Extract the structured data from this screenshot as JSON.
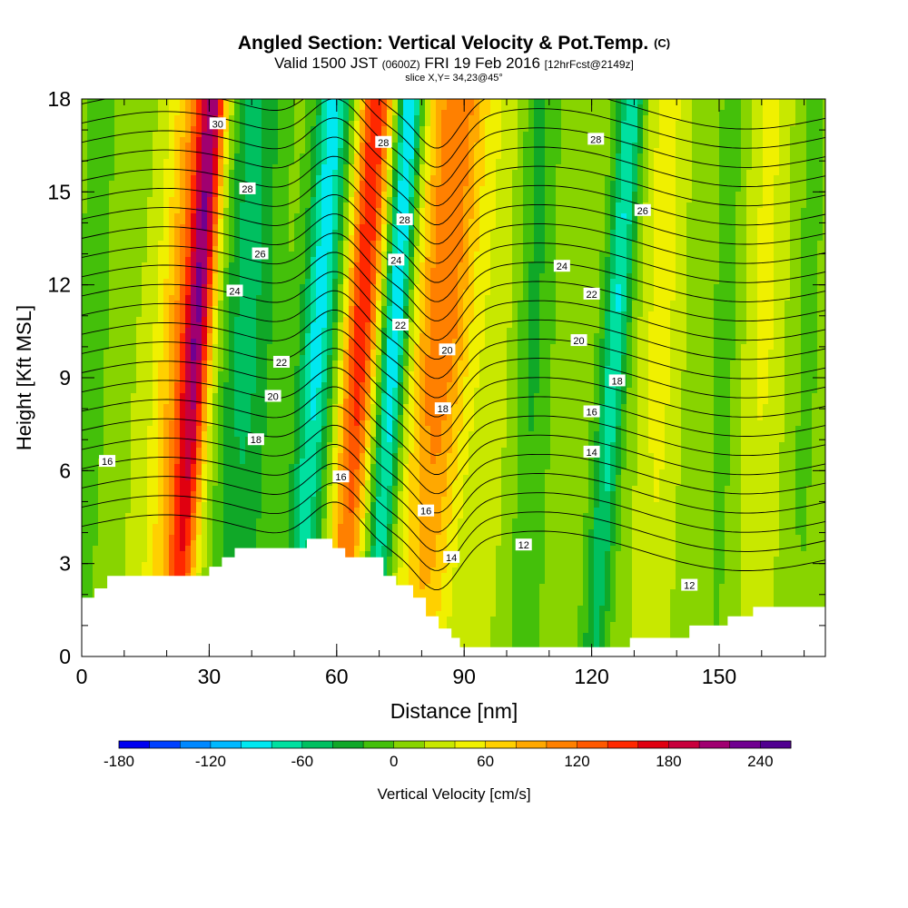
{
  "title": {
    "main": "Angled Section: Vertical Velocity & Pot.Temp.",
    "main_unit": "(C)",
    "valid_prefix": "Valid 1500 JST",
    "valid_z": "(0600Z)",
    "valid_date": "FRI 19 Feb 2016",
    "forecast": "[12hrFcst@2149z]",
    "slice": "slice X,Y= 34,23@45°"
  },
  "chart_data": {
    "type": "heatmap",
    "xlabel": "Distance [nm]",
    "ylabel": "Height [Kft MSL]",
    "xlim": [
      0,
      175
    ],
    "ylim": [
      0,
      18
    ],
    "xticks": [
      0,
      30,
      60,
      90,
      120,
      150
    ],
    "yticks": [
      0,
      3,
      6,
      9,
      12,
      15,
      18
    ],
    "x_minor_step": 10,
    "y_minor_step": 1,
    "terrain": {
      "x": [
        0,
        3,
        3,
        6,
        6,
        30,
        30,
        33,
        33,
        36,
        36,
        53,
        53,
        59,
        59,
        62,
        62,
        71,
        71,
        74,
        74,
        78,
        78,
        81,
        81,
        84,
        84,
        87,
        87,
        89,
        89,
        129,
        129,
        143,
        143,
        152,
        152,
        158,
        158,
        166,
        166,
        175
      ],
      "h": [
        1.9,
        1.9,
        2.2,
        2.2,
        2.6,
        2.6,
        2.9,
        2.9,
        3.2,
        3.2,
        3.5,
        3.5,
        3.8,
        3.8,
        3.5,
        3.5,
        3.2,
        3.2,
        2.6,
        2.6,
        2.3,
        2.3,
        1.9,
        1.9,
        1.3,
        1.3,
        0.9,
        0.9,
        0.6,
        0.6,
        0.3,
        0.3,
        0.6,
        0.6,
        1.0,
        1.0,
        1.3,
        1.3,
        1.6,
        1.6,
        1.6,
        1.6
      ]
    },
    "velocity_bands": [
      {
        "x": 3,
        "w": 5,
        "v": -15
      },
      {
        "x": 10,
        "w": 4,
        "v": 8
      },
      {
        "x": 24,
        "w": 7,
        "v": 100
      },
      {
        "x": 26.5,
        "w": 3,
        "v": 130
      },
      {
        "x": 38,
        "w": 7,
        "v": -60
      },
      {
        "x": 55,
        "w": 4,
        "v": -100
      },
      {
        "x": 65,
        "w": 4,
        "v": 150
      },
      {
        "x": 73,
        "w": 3,
        "v": -120
      },
      {
        "x": 84,
        "w": 7,
        "v": 110
      },
      {
        "x": 97,
        "w": 6,
        "v": 20
      },
      {
        "x": 106,
        "w": 4,
        "v": -35
      },
      {
        "x": 125,
        "w": 3,
        "v": -90
      },
      {
        "x": 136,
        "w": 5,
        "v": 40
      },
      {
        "x": 152,
        "w": 4,
        "v": -20
      },
      {
        "x": 160,
        "w": 6,
        "v": 35
      },
      {
        "x": 170,
        "w": 4,
        "v": -15
      }
    ],
    "contour_labels": [
      {
        "x": 32,
        "y": 17.2,
        "text": "30"
      },
      {
        "x": 39,
        "y": 15.1,
        "text": "28"
      },
      {
        "x": 42,
        "y": 13.0,
        "text": "26"
      },
      {
        "x": 36,
        "y": 11.8,
        "text": "24"
      },
      {
        "x": 47,
        "y": 9.5,
        "text": "22"
      },
      {
        "x": 45,
        "y": 8.4,
        "text": "20"
      },
      {
        "x": 41,
        "y": 7.0,
        "text": "18"
      },
      {
        "x": 6,
        "y": 6.3,
        "text": "16"
      },
      {
        "x": 61,
        "y": 5.8,
        "text": "16"
      },
      {
        "x": 71,
        "y": 16.6,
        "text": "28"
      },
      {
        "x": 76,
        "y": 14.1,
        "text": "28"
      },
      {
        "x": 74,
        "y": 12.8,
        "text": "24"
      },
      {
        "x": 75,
        "y": 10.7,
        "text": "22"
      },
      {
        "x": 86,
        "y": 9.9,
        "text": "20"
      },
      {
        "x": 85,
        "y": 8.0,
        "text": "18"
      },
      {
        "x": 81,
        "y": 4.7,
        "text": "16"
      },
      {
        "x": 87,
        "y": 3.2,
        "text": "14"
      },
      {
        "x": 104,
        "y": 3.6,
        "text": "12"
      },
      {
        "x": 121,
        "y": 16.7,
        "text": "28"
      },
      {
        "x": 132,
        "y": 14.4,
        "text": "26"
      },
      {
        "x": 113,
        "y": 12.6,
        "text": "24"
      },
      {
        "x": 120,
        "y": 11.7,
        "text": "22"
      },
      {
        "x": 117,
        "y": 10.2,
        "text": "20"
      },
      {
        "x": 126,
        "y": 8.9,
        "text": "18"
      },
      {
        "x": 120,
        "y": 7.9,
        "text": "16"
      },
      {
        "x": 120,
        "y": 6.6,
        "text": "14"
      },
      {
        "x": 143,
        "y": 2.3,
        "text": "12"
      }
    ],
    "colorbar": {
      "label": "Vertical Velocity [cm/s]",
      "min": -180,
      "max": 260,
      "step": 20,
      "tick_values": [
        -180,
        -120,
        -60,
        0,
        60,
        120,
        180,
        240
      ],
      "tick_labels": [
        "-180",
        "-120",
        "-60",
        "0",
        "60",
        "120",
        "180",
        "240"
      ],
      "colors": [
        "#0000f0",
        "#0040ff",
        "#0088ff",
        "#00b8ff",
        "#00e8f0",
        "#00e0a0",
        "#00c060",
        "#10a828",
        "#44c00a",
        "#88d400",
        "#c8e800",
        "#f0f000",
        "#ffd000",
        "#ffa800",
        "#ff8000",
        "#ff5800",
        "#ff2800",
        "#e00010",
        "#c8003c",
        "#a00070",
        "#700090",
        "#500090"
      ]
    }
  }
}
